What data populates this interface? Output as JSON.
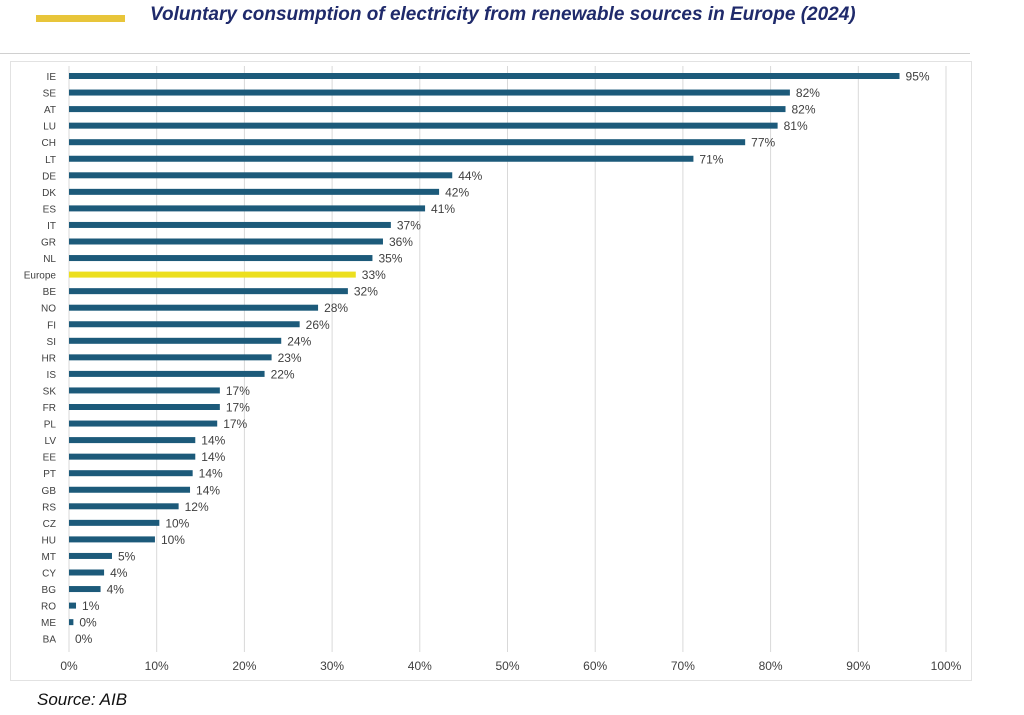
{
  "header": {
    "title": "Voluntary consumption of electricity from renewable sources in Europe (2024)",
    "accent_color": "#e8c53a"
  },
  "footer": {
    "source": "Source: AIB"
  },
  "colors": {
    "bar": "#1c5a7a",
    "highlight": "#ecdf1f",
    "grid": "#d9d9d9",
    "text": "#404040"
  },
  "chart_data": {
    "type": "bar",
    "orientation": "horizontal",
    "title": "",
    "xlabel": "",
    "ylabel": "",
    "xlim": [
      0,
      100
    ],
    "x_ticks": [
      "0%",
      "10%",
      "20%",
      "30%",
      "40%",
      "50%",
      "60%",
      "70%",
      "80%",
      "90%",
      "100%"
    ],
    "grid": "vertical",
    "legend": "none",
    "highlight_category": "Europe",
    "categories": [
      "IE",
      "SE",
      "AT",
      "LU",
      "CH",
      "LT",
      "DE",
      "DK",
      "ES",
      "IT",
      "GR",
      "NL",
      "Europe",
      "BE",
      "NO",
      "FI",
      "SI",
      "HR",
      "IS",
      "SK",
      "FR",
      "PL",
      "LV",
      "EE",
      "PT",
      "GB",
      "RS",
      "CZ",
      "HU",
      "MT",
      "CY",
      "BG",
      "RO",
      "ME",
      "BA"
    ],
    "values": [
      94.7,
      82.2,
      81.7,
      80.8,
      77.1,
      71.2,
      43.7,
      42.2,
      40.6,
      36.7,
      35.8,
      34.6,
      32.7,
      31.8,
      28.4,
      26.3,
      24.2,
      23.1,
      22.3,
      17.2,
      17.2,
      16.9,
      14.4,
      14.4,
      14.1,
      13.8,
      12.5,
      10.3,
      9.8,
      4.9,
      4.0,
      3.6,
      0.8,
      0.5,
      0.0
    ],
    "data_labels": [
      "95%",
      "82%",
      "82%",
      "81%",
      "77%",
      "71%",
      "44%",
      "42%",
      "41%",
      "37%",
      "36%",
      "35%",
      "33%",
      "32%",
      "28%",
      "26%",
      "24%",
      "23%",
      "22%",
      "17%",
      "17%",
      "17%",
      "14%",
      "14%",
      "14%",
      "14%",
      "12%",
      "10%",
      "10%",
      "5%",
      "4%",
      "4%",
      "1%",
      "0%",
      "0%"
    ]
  }
}
